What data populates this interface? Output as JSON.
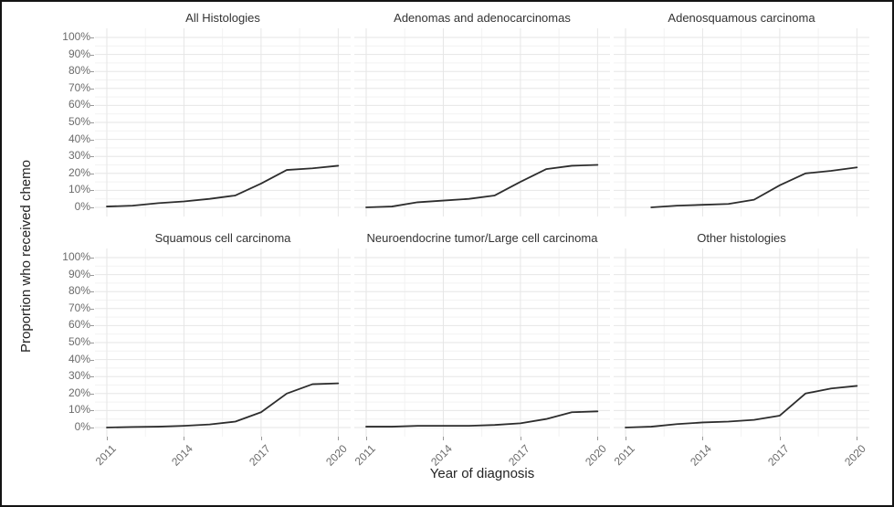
{
  "chart_data": {
    "type": "line",
    "title": "",
    "xlabel": "Year of diagnosis",
    "ylabel": "Proportion who received chemo",
    "x_tick_labels": [
      "2011",
      "2014",
      "2017",
      "2020"
    ],
    "x_tick_years": [
      2011,
      2014,
      2017,
      2020
    ],
    "x_minor_years": [
      2012.5,
      2015.5,
      2018.5
    ],
    "y_tick_labels": [
      "0%",
      "10%",
      "20%",
      "30%",
      "40%",
      "50%",
      "60%",
      "70%",
      "80%",
      "90%",
      "100%"
    ],
    "x_range": [
      2010.5,
      2020.5
    ],
    "ylim_pct": [
      0,
      100
    ],
    "grid": "horizontal and vertical major gridlines with fainter minor gridlines, light gray on white",
    "legend": "none",
    "line_color": "#2d2d2d",
    "facet_layout": "2 rows x 3 columns",
    "facets": [
      {
        "title": "All Histologies",
        "years": [
          2011,
          2012,
          2013,
          2014,
          2015,
          2016,
          2017,
          2018,
          2019,
          2020
        ],
        "values_pct": [
          0.5,
          1,
          2.5,
          3.5,
          5,
          7,
          14,
          22,
          23,
          24.5
        ]
      },
      {
        "title": "Adenomas and adenocarcinomas",
        "years": [
          2011,
          2012,
          2013,
          2014,
          2015,
          2016,
          2017,
          2018,
          2019,
          2020
        ],
        "values_pct": [
          0,
          0.5,
          3,
          4,
          5,
          7,
          15,
          22.5,
          24.5,
          25
        ]
      },
      {
        "title": "Adenosquamous carcinoma",
        "years": [
          2012,
          2013,
          2014,
          2015,
          2016,
          2017,
          2018,
          2019,
          2020
        ],
        "values_pct": [
          0,
          1,
          1.5,
          2,
          4.5,
          13,
          20,
          21.5,
          23.5
        ]
      },
      {
        "title": "Squamous cell carcinoma",
        "years": [
          2011,
          2012,
          2013,
          2014,
          2015,
          2016,
          2017,
          2018,
          2019,
          2020
        ],
        "values_pct": [
          0,
          0.3,
          0.5,
          1,
          1.8,
          3.5,
          9,
          20,
          25.5,
          26
        ]
      },
      {
        "title": "Neuroendocrine tumor/Large cell carcinoma",
        "years": [
          2011,
          2012,
          2013,
          2014,
          2015,
          2016,
          2017,
          2018,
          2019,
          2020
        ],
        "values_pct": [
          0.5,
          0.5,
          1,
          1,
          1,
          1.5,
          2.5,
          5,
          9,
          9.5
        ]
      },
      {
        "title": "Other histologies",
        "years": [
          2011,
          2012,
          2013,
          2014,
          2015,
          2016,
          2017,
          2018,
          2019,
          2020
        ],
        "values_pct": [
          0,
          0.5,
          2,
          3,
          3.5,
          4.5,
          7,
          20,
          23,
          24.5
        ]
      }
    ]
  }
}
